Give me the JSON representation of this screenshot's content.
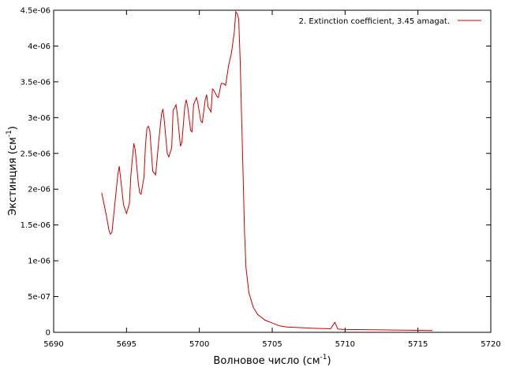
{
  "chart_data": {
    "type": "line",
    "title": "",
    "xlabel": {
      "main": "Волновое число (см",
      "sup": "-1",
      "tail": ")"
    },
    "ylabel": {
      "main": "Экстинция (см",
      "sup": "-1",
      "tail": ")"
    },
    "xlim": [
      5690,
      5720
    ],
    "ylim": [
      0,
      4.5e-06
    ],
    "xticks": [
      "5690",
      "5695",
      "5700",
      "5705",
      "5710",
      "5715",
      "5720"
    ],
    "yticks": [
      "0",
      "5e-07",
      "1e-06",
      "1.5e-06",
      "2e-06",
      "2.5e-06",
      "3e-06",
      "3.5e-06",
      "4e-06",
      "4.5e-06"
    ],
    "legend_position": "top-right",
    "grid": false,
    "series": [
      {
        "name": "2. Extinction coefficient, 3.45 amagat.",
        "color": "#cc0000",
        "points": [
          [
            5693.3,
            1.95e-06
          ],
          [
            5693.6,
            1.65e-06
          ],
          [
            5693.8,
            1.42e-06
          ],
          [
            5693.9,
            1.37e-06
          ],
          [
            5694.0,
            1.4e-06
          ],
          [
            5694.2,
            1.8e-06
          ],
          [
            5694.4,
            2.2e-06
          ],
          [
            5694.5,
            2.32e-06
          ],
          [
            5694.6,
            2.15e-06
          ],
          [
            5694.8,
            1.78e-06
          ],
          [
            5695.0,
            1.66e-06
          ],
          [
            5695.2,
            1.8e-06
          ],
          [
            5695.3,
            2.2e-06
          ],
          [
            5695.5,
            2.64e-06
          ],
          [
            5695.6,
            2.55e-06
          ],
          [
            5695.8,
            2.1e-06
          ],
          [
            5695.9,
            1.95e-06
          ],
          [
            5696.0,
            1.93e-06
          ],
          [
            5696.2,
            2.17e-06
          ],
          [
            5696.3,
            2.6e-06
          ],
          [
            5696.4,
            2.85e-06
          ],
          [
            5696.5,
            2.88e-06
          ],
          [
            5696.6,
            2.82e-06
          ],
          [
            5696.8,
            2.25e-06
          ],
          [
            5697.0,
            2.2e-06
          ],
          [
            5697.2,
            2.65e-06
          ],
          [
            5697.4,
            3.05e-06
          ],
          [
            5697.5,
            3.12e-06
          ],
          [
            5697.6,
            2.95e-06
          ],
          [
            5697.8,
            2.5e-06
          ],
          [
            5697.9,
            2.45e-06
          ],
          [
            5698.1,
            2.58e-06
          ],
          [
            5698.2,
            3.1e-06
          ],
          [
            5698.4,
            3.18e-06
          ],
          [
            5698.5,
            3.02e-06
          ],
          [
            5698.7,
            2.6e-06
          ],
          [
            5698.8,
            2.65e-06
          ],
          [
            5699.0,
            3.15e-06
          ],
          [
            5699.1,
            3.25e-06
          ],
          [
            5699.2,
            3.15e-06
          ],
          [
            5699.4,
            2.82e-06
          ],
          [
            5699.5,
            2.8e-06
          ],
          [
            5699.6,
            3.18e-06
          ],
          [
            5699.8,
            3.28e-06
          ],
          [
            5699.9,
            3.2e-06
          ],
          [
            5700.1,
            2.95e-06
          ],
          [
            5700.2,
            2.93e-06
          ],
          [
            5700.4,
            3.25e-06
          ],
          [
            5700.5,
            3.32e-06
          ],
          [
            5700.6,
            3.15e-06
          ],
          [
            5700.8,
            3.08e-06
          ],
          [
            5700.9,
            3.4e-06
          ],
          [
            5701.0,
            3.38e-06
          ],
          [
            5701.2,
            3.3e-06
          ],
          [
            5701.3,
            3.28e-06
          ],
          [
            5701.5,
            3.48e-06
          ],
          [
            5701.7,
            3.47e-06
          ],
          [
            5701.8,
            3.45e-06
          ],
          [
            5702.0,
            3.72e-06
          ],
          [
            5702.2,
            3.9e-06
          ],
          [
            5702.4,
            4.2e-06
          ],
          [
            5702.5,
            4.48e-06
          ],
          [
            5702.6,
            4.45e-06
          ],
          [
            5702.7,
            4.38e-06
          ],
          [
            5702.8,
            3.8e-06
          ],
          [
            5702.9,
            3e-06
          ],
          [
            5703.0,
            2.2e-06
          ],
          [
            5703.1,
            1.4e-06
          ],
          [
            5703.2,
            9e-07
          ],
          [
            5703.4,
            5.5e-07
          ],
          [
            5703.7,
            3.5e-07
          ],
          [
            5704.0,
            2.5e-07
          ],
          [
            5704.5,
            1.7e-07
          ],
          [
            5705.0,
            1.3e-07
          ],
          [
            5705.5,
            9e-08
          ],
          [
            5706.0,
            7.5e-08
          ],
          [
            5707.0,
            6.5e-08
          ],
          [
            5708.0,
            5.5e-08
          ],
          [
            5709.0,
            5e-08
          ],
          [
            5709.3,
            1.4e-07
          ],
          [
            5709.5,
            4.5e-08
          ],
          [
            5710.0,
            4e-08
          ],
          [
            5712.0,
            3.5e-08
          ],
          [
            5714.0,
            3e-08
          ],
          [
            5716.0,
            2.5e-08
          ]
        ]
      }
    ]
  }
}
